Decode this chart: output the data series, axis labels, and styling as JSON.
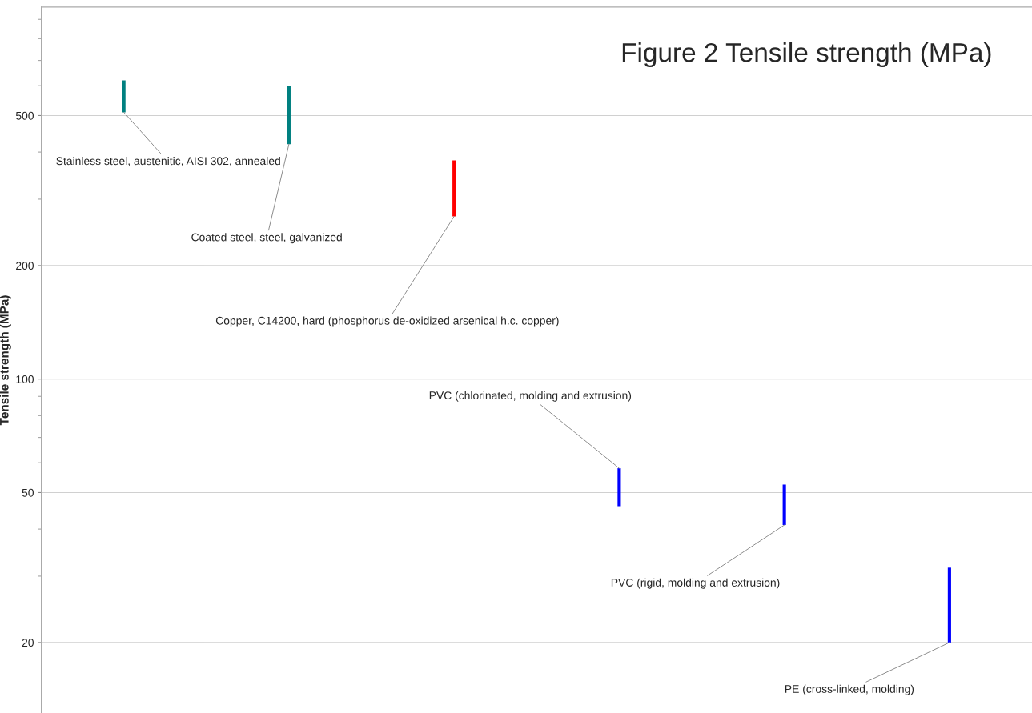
{
  "chart_data": {
    "type": "bar",
    "title": "Figure 2 Tensile strength (MPa)",
    "ylabel": "Tensile strength (MPa)",
    "categories": [
      null,
      null,
      null,
      null,
      null,
      null
    ],
    "base": [
      510,
      420,
      270,
      46,
      41,
      20
    ],
    "values": [
      110,
      180,
      110,
      12,
      11.5,
      11.6
    ],
    "colors": [
      "#008080",
      "#008080",
      "#ff0000",
      "#0000ff",
      "#0000ff",
      "#0000ff"
    ],
    "annotations": [
      "Stainless steel, austenitic, AISI 302, annealed",
      "Coated steel, steel, galvanized",
      "Copper, C14200, hard (phosphorus de-oxidized arsenical h.c. copper)",
      "PVC (chlorinated, molding and extrusion)",
      "PVC (rigid, molding and extrusion)",
      "PE (cross-linked, molding)"
    ],
    "log": "y",
    "ylim": [
      13,
      970
    ],
    "yticks": [
      20,
      50,
      100,
      200,
      500
    ],
    "grid": "y",
    "tick_labels": "y"
  }
}
